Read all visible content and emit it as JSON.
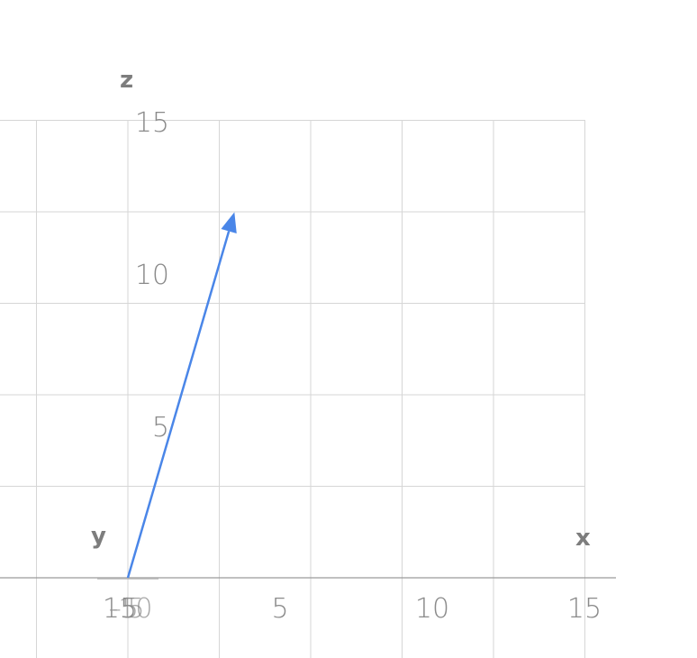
{
  "chart_data": {
    "type": "line",
    "description_kind": "3d-vector-plot",
    "axes": {
      "x": {
        "label": "x",
        "range": [
          -15,
          15
        ],
        "ticks": [
          5,
          10,
          15
        ],
        "tick_labels": [
          "5",
          "10",
          "15"
        ]
      },
      "y": {
        "label": "y",
        "ticks": [
          -15,
          -10,
          -5
        ],
        "tick_labels": [
          "-15",
          "-10",
          "-5"
        ]
      },
      "z": {
        "label": "z",
        "range": [
          0,
          15
        ],
        "ticks": [
          5,
          10,
          15
        ],
        "tick_labels": [
          "5",
          "10",
          "15"
        ]
      }
    },
    "origin_tick_labels": [
      "15",
      "-5",
      "-10",
      "5"
    ],
    "grid": true,
    "vectors": [
      {
        "from": [
          0,
          0,
          0
        ],
        "to": [
          3.5,
          0,
          12
        ],
        "color": "#4a86e8"
      }
    ]
  }
}
